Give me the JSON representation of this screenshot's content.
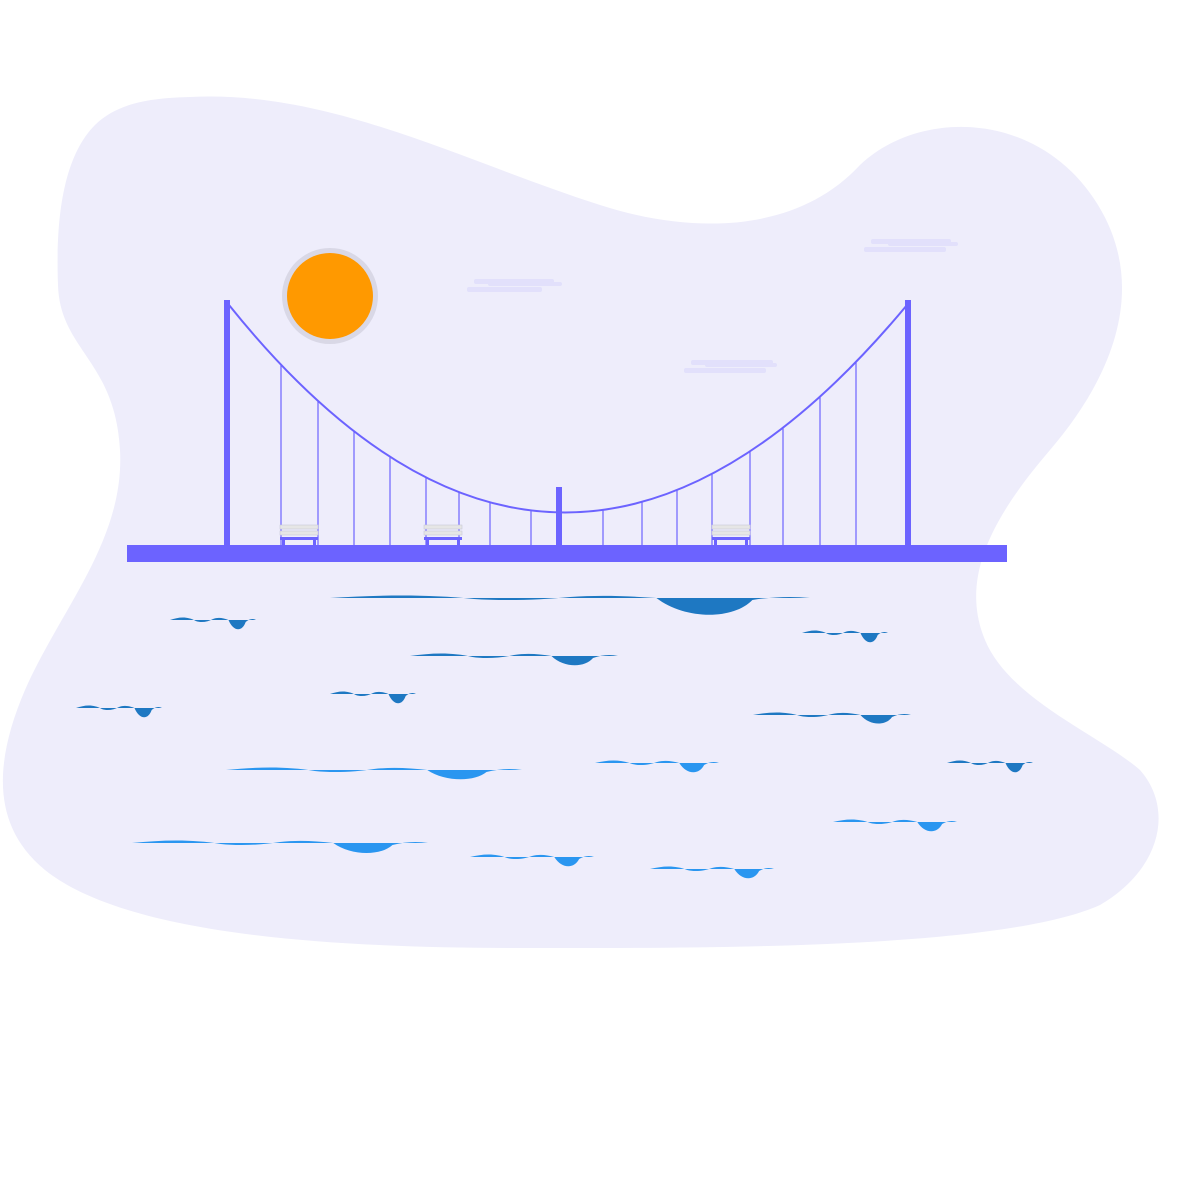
{
  "illustration": {
    "subject": "suspension-bridge-over-water",
    "colors": {
      "background": "#ffffff",
      "blob": "#eeedfb",
      "cloud": "#e2e0fb",
      "bridge": "#6c63ff",
      "sun": "#ff9900",
      "sun_halo": "#d9d8e6",
      "bench_seat": "#e6e6e6",
      "bench_frame": "#6c63ff",
      "wave_dark": "#1e78c2",
      "wave_light": "#2a96f0"
    },
    "elements": {
      "sun": "sun-icon",
      "clouds": [
        "cloud-icon",
        "cloud-icon",
        "cloud-icon"
      ],
      "benches": [
        "bench-icon",
        "bench-icon",
        "bench-icon"
      ],
      "bridge": "suspension-bridge",
      "waves": "water-waves"
    }
  }
}
